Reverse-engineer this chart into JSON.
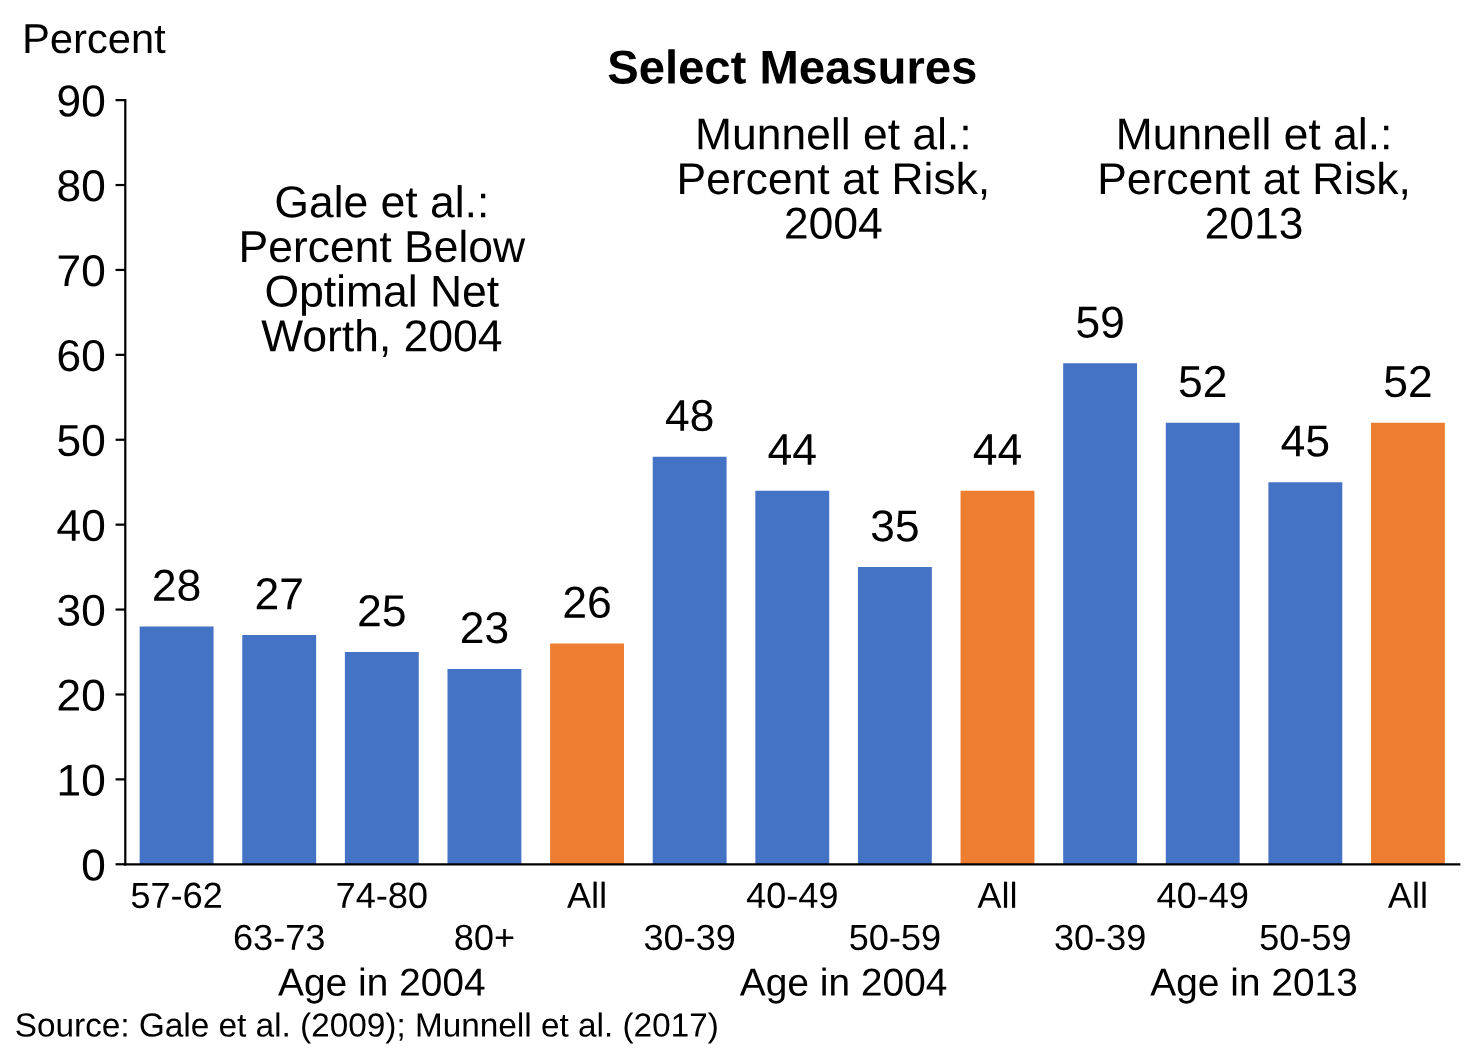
{
  "chart_data": {
    "type": "bar",
    "title": "Select Measures",
    "ylabel": "Percent",
    "categories": [
      "57-62",
      "63-73",
      "74-80",
      "80+",
      "All",
      "30-39",
      "40-49",
      "50-59",
      "All",
      "30-39",
      "40-49",
      "50-59",
      "All"
    ],
    "values": [
      28,
      27,
      25,
      23,
      26,
      48,
      44,
      35,
      44,
      59,
      52,
      45,
      52
    ],
    "colors": [
      "#4472c4",
      "#4472c4",
      "#4472c4",
      "#4472c4",
      "#ed7d31",
      "#4472c4",
      "#4472c4",
      "#4472c4",
      "#ed7d31",
      "#4472c4",
      "#4472c4",
      "#4472c4",
      "#ed7d31"
    ],
    "ylim": [
      0,
      90
    ],
    "yticks": [
      0,
      10,
      20,
      30,
      40,
      50,
      60,
      70,
      80,
      90
    ],
    "grid": false,
    "data_labels": true,
    "annotations": [
      "Gale et al.:\nPercent Below\nOptimal Net\nWorth, 2004",
      "Munnell et al.:\nPercent at Risk,\n2004",
      "Munnell et al.:\nPercent at Risk,\n2013",
      "Age in 2004",
      "Age in 2004",
      "Age in 2013",
      "Source: Gale et al. (2009); Munnell et al. (2017)"
    ]
  }
}
